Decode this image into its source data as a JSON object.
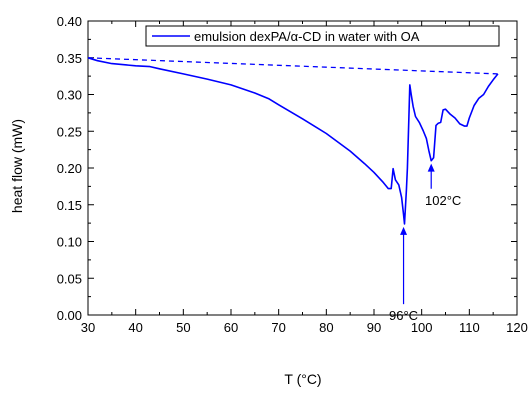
{
  "chart_data": {
    "type": "line",
    "title": "",
    "xlabel": "T (°C)",
    "ylabel": "heat flow (mW)",
    "xlim": [
      30,
      120
    ],
    "ylim": [
      0.0,
      0.4
    ],
    "x_ticks": [
      "30",
      "40",
      "50",
      "60",
      "70",
      "80",
      "90",
      "100",
      "110",
      "120"
    ],
    "y_ticks": [
      "0.00",
      "0.05",
      "0.10",
      "0.15",
      "0.20",
      "0.25",
      "0.30",
      "0.35",
      "0.40"
    ],
    "grid": false,
    "legend_position": "top-right",
    "series": [
      {
        "name": "emulsion dexPA/α-CD in water with OA",
        "color": "#0000ff",
        "style": "solid",
        "points": [
          [
            30,
            0.35
          ],
          [
            32,
            0.346
          ],
          [
            35,
            0.342
          ],
          [
            40,
            0.339
          ],
          [
            43,
            0.338
          ],
          [
            45,
            0.335
          ],
          [
            50,
            0.328
          ],
          [
            55,
            0.321
          ],
          [
            60,
            0.313
          ],
          [
            65,
            0.302
          ],
          [
            68,
            0.294
          ],
          [
            70,
            0.286
          ],
          [
            75,
            0.267
          ],
          [
            80,
            0.247
          ],
          [
            85,
            0.223
          ],
          [
            88,
            0.206
          ],
          [
            90,
            0.194
          ],
          [
            92,
            0.18
          ],
          [
            93,
            0.172
          ],
          [
            93.6,
            0.172
          ],
          [
            94.0,
            0.199
          ],
          [
            94.5,
            0.184
          ],
          [
            95.2,
            0.177
          ],
          [
            95.8,
            0.16
          ],
          [
            96.2,
            0.136
          ],
          [
            96.4,
            0.124
          ],
          [
            96.8,
            0.17
          ],
          [
            97.0,
            0.2
          ],
          [
            97.3,
            0.265
          ],
          [
            97.5,
            0.313
          ],
          [
            97.8,
            0.3
          ],
          [
            98.2,
            0.284
          ],
          [
            98.7,
            0.27
          ],
          [
            99.5,
            0.262
          ],
          [
            100.3,
            0.251
          ],
          [
            101.0,
            0.24
          ],
          [
            101.5,
            0.224
          ],
          [
            102.0,
            0.21
          ],
          [
            102.5,
            0.214
          ],
          [
            103.0,
            0.258
          ],
          [
            103.5,
            0.261
          ],
          [
            104.0,
            0.262
          ],
          [
            104.5,
            0.279
          ],
          [
            105.0,
            0.28
          ],
          [
            106,
            0.273
          ],
          [
            107,
            0.268
          ],
          [
            108,
            0.26
          ],
          [
            109,
            0.257
          ],
          [
            109.5,
            0.257
          ],
          [
            110,
            0.268
          ],
          [
            111,
            0.285
          ],
          [
            112,
            0.295
          ],
          [
            113,
            0.3
          ],
          [
            114,
            0.311
          ],
          [
            115,
            0.32
          ],
          [
            116,
            0.328
          ]
        ]
      },
      {
        "name": "",
        "color": "#0000ff",
        "style": "dashed",
        "points": [
          [
            30,
            0.35
          ],
          [
            116,
            0.328
          ]
        ]
      }
    ],
    "annotations": [
      {
        "text": "96°C",
        "x": 96.2,
        "y": 0.124,
        "label_y": -0.007
      },
      {
        "text": "102°C",
        "x": 102.0,
        "y": 0.21,
        "label_y": 0.15
      }
    ]
  }
}
